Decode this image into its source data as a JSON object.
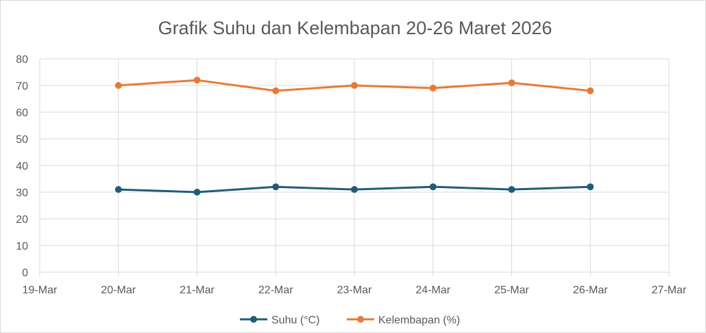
{
  "chart_data": {
    "type": "line",
    "title": "Grafik Suhu dan Kelembapan 20-26 Maret 2026",
    "xlabel": "",
    "ylabel": "",
    "x_ticks": [
      "19-Mar",
      "20-Mar",
      "21-Mar",
      "22-Mar",
      "23-Mar",
      "24-Mar",
      "25-Mar",
      "26-Mar",
      "27-Mar"
    ],
    "x": [
      "20-Mar",
      "21-Mar",
      "22-Mar",
      "23-Mar",
      "24-Mar",
      "25-Mar",
      "26-Mar"
    ],
    "ylim": [
      0,
      80
    ],
    "y_ticks": [
      "0",
      "10",
      "20",
      "30",
      "40",
      "50",
      "60",
      "70",
      "80"
    ],
    "grid": true,
    "legend_position": "bottom",
    "series": [
      {
        "name": "Suhu (°C)",
        "color": "#1f5c77",
        "values": [
          31,
          30,
          32,
          31,
          32,
          31,
          32
        ]
      },
      {
        "name": "Kelembapan (%)",
        "color": "#e97a33",
        "values": [
          70,
          72,
          68,
          70,
          69,
          71,
          68
        ]
      }
    ]
  }
}
